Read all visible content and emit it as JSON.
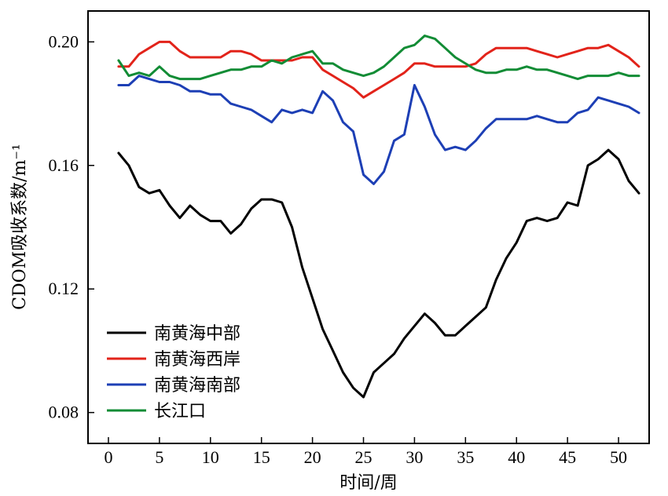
{
  "chart_data": {
    "type": "line",
    "xlabel": "时间/周",
    "ylabel": "CDOM吸收系数/m⁻¹",
    "xlim": [
      -2,
      53
    ],
    "ylim": [
      0.07,
      0.21
    ],
    "xticks": [
      0,
      5,
      10,
      15,
      20,
      25,
      30,
      35,
      40,
      45,
      50
    ],
    "yticks": [
      0.08,
      0.12,
      0.16,
      0.2
    ],
    "ytick_labels": [
      "0.08",
      "0.12",
      "0.16",
      "0.20"
    ],
    "grid": false,
    "legend_position": "bottom-left",
    "x": [
      1,
      2,
      3,
      4,
      5,
      6,
      7,
      8,
      9,
      10,
      11,
      12,
      13,
      14,
      15,
      16,
      17,
      18,
      19,
      20,
      21,
      22,
      23,
      24,
      25,
      26,
      27,
      28,
      29,
      30,
      31,
      32,
      33,
      34,
      35,
      36,
      37,
      38,
      39,
      40,
      41,
      42,
      43,
      44,
      45,
      46,
      47,
      48,
      49,
      50,
      51,
      52
    ],
    "series": [
      {
        "name": "南黄海中部",
        "color": "#000000",
        "values": [
          0.164,
          0.16,
          0.153,
          0.151,
          0.152,
          0.147,
          0.143,
          0.147,
          0.144,
          0.142,
          0.142,
          0.138,
          0.141,
          0.146,
          0.149,
          0.149,
          0.148,
          0.14,
          0.127,
          0.117,
          0.107,
          0.1,
          0.093,
          0.088,
          0.085,
          0.093,
          0.096,
          0.099,
          0.104,
          0.108,
          0.112,
          0.109,
          0.105,
          0.105,
          0.108,
          0.111,
          0.114,
          0.123,
          0.13,
          0.135,
          0.142,
          0.143,
          0.142,
          0.143,
          0.148,
          0.147,
          0.16,
          0.162,
          0.165,
          0.162,
          0.155,
          0.151
        ]
      },
      {
        "name": "南黄海西岸",
        "color": "#e2231a",
        "values": [
          0.192,
          0.192,
          0.196,
          0.198,
          0.2,
          0.2,
          0.197,
          0.195,
          0.195,
          0.195,
          0.195,
          0.197,
          0.197,
          0.196,
          0.194,
          0.194,
          0.194,
          0.194,
          0.195,
          0.195,
          0.191,
          0.189,
          0.187,
          0.185,
          0.182,
          0.184,
          0.186,
          0.188,
          0.19,
          0.193,
          0.193,
          0.192,
          0.192,
          0.192,
          0.192,
          0.193,
          0.196,
          0.198,
          0.198,
          0.198,
          0.198,
          0.197,
          0.196,
          0.195,
          0.196,
          0.197,
          0.198,
          0.198,
          0.199,
          0.197,
          0.195,
          0.192
        ]
      },
      {
        "name": "南黄海南部",
        "color": "#1d3fb5",
        "values": [
          0.186,
          0.186,
          0.189,
          0.188,
          0.187,
          0.187,
          0.186,
          0.184,
          0.184,
          0.183,
          0.183,
          0.18,
          0.179,
          0.178,
          0.176,
          0.174,
          0.178,
          0.177,
          0.178,
          0.177,
          0.184,
          0.181,
          0.174,
          0.171,
          0.157,
          0.154,
          0.158,
          0.168,
          0.17,
          0.186,
          0.179,
          0.17,
          0.165,
          0.166,
          0.165,
          0.168,
          0.172,
          0.175,
          0.175,
          0.175,
          0.175,
          0.176,
          0.175,
          0.174,
          0.174,
          0.177,
          0.178,
          0.182,
          0.181,
          0.18,
          0.179,
          0.177
        ]
      },
      {
        "name": "长江口",
        "color": "#128c35",
        "values": [
          0.194,
          0.189,
          0.19,
          0.189,
          0.192,
          0.189,
          0.188,
          0.188,
          0.188,
          0.189,
          0.19,
          0.191,
          0.191,
          0.192,
          0.192,
          0.194,
          0.193,
          0.195,
          0.196,
          0.197,
          0.193,
          0.193,
          0.191,
          0.19,
          0.189,
          0.19,
          0.192,
          0.195,
          0.198,
          0.199,
          0.202,
          0.201,
          0.198,
          0.195,
          0.193,
          0.191,
          0.19,
          0.19,
          0.191,
          0.191,
          0.192,
          0.191,
          0.191,
          0.19,
          0.189,
          0.188,
          0.189,
          0.189,
          0.189,
          0.19,
          0.189,
          0.189
        ]
      }
    ]
  }
}
